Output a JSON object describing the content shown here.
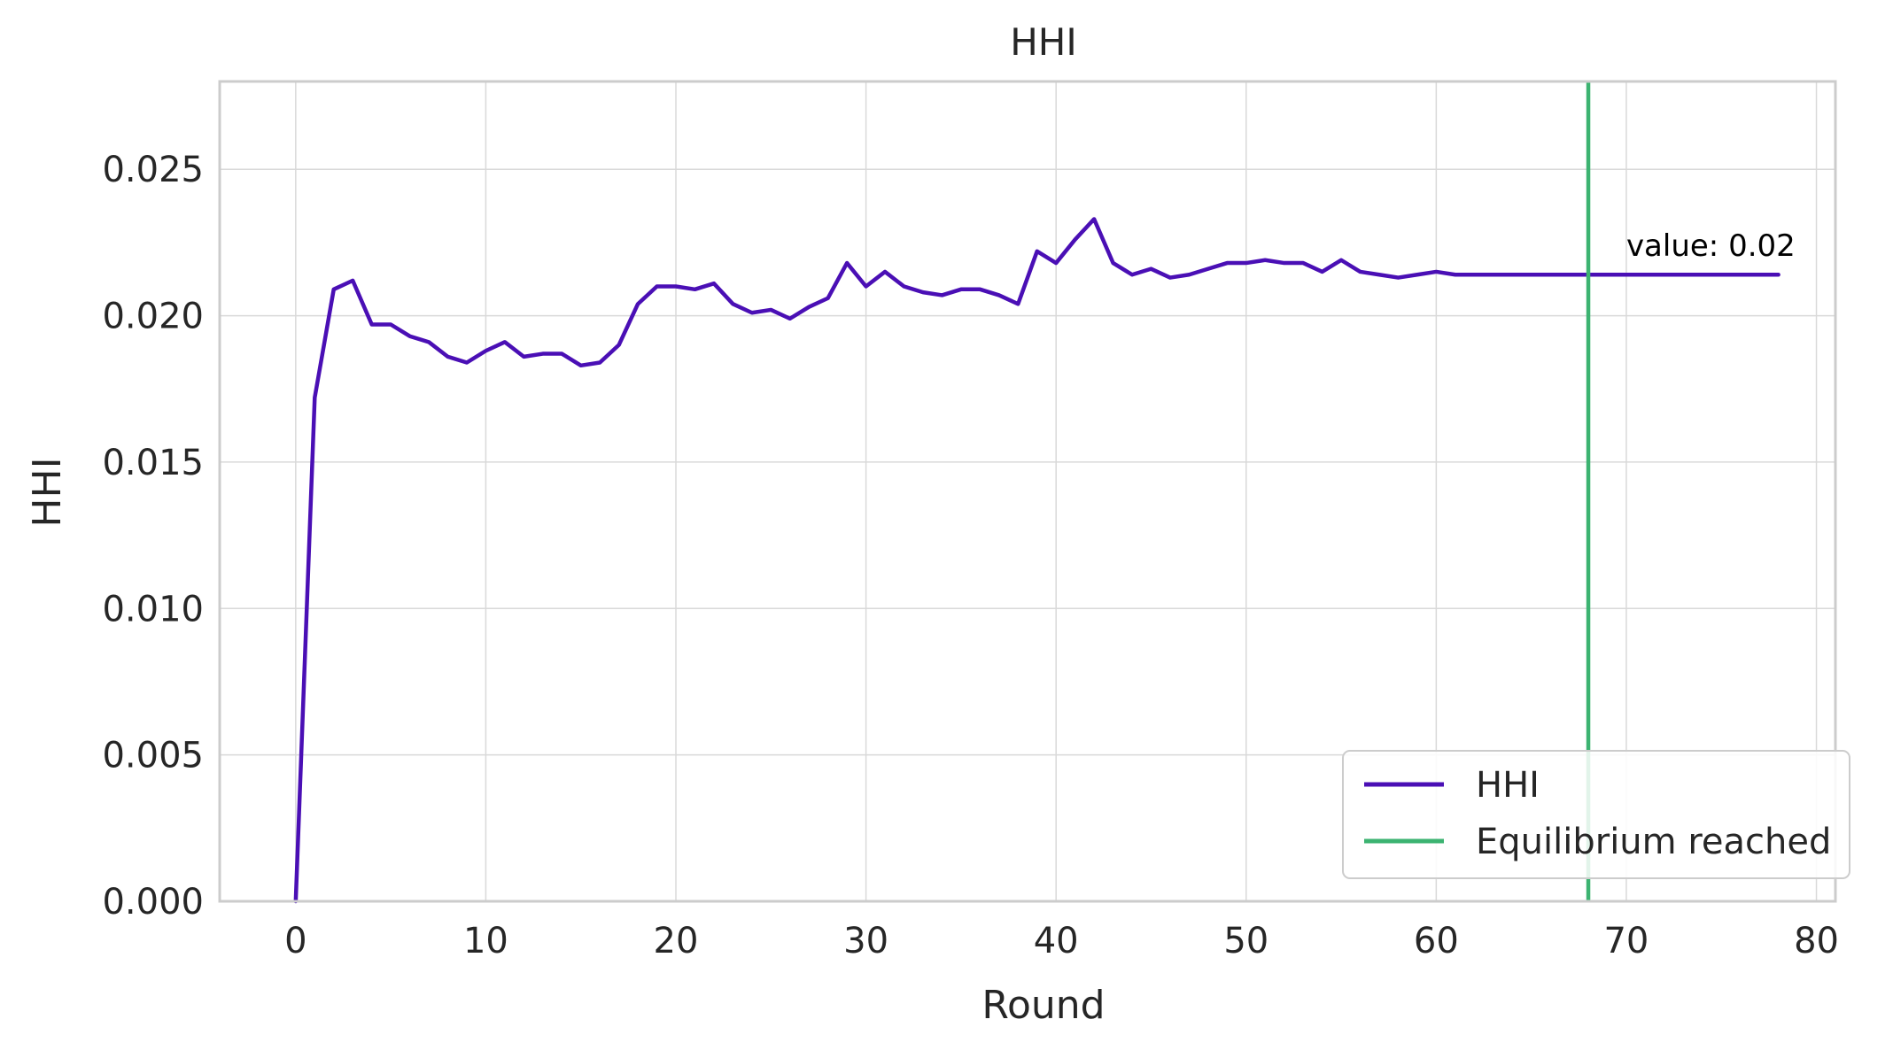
{
  "chart_data": {
    "type": "line",
    "title": "HHI",
    "xlabel": "Round",
    "ylabel": "HHI",
    "xlim": [
      -4,
      81
    ],
    "ylim": [
      0,
      0.028
    ],
    "xticks": [
      0,
      10,
      20,
      30,
      40,
      50,
      60,
      70,
      80
    ],
    "xtick_labels": [
      "0",
      "10",
      "20",
      "30",
      "40",
      "50",
      "60",
      "70",
      "80"
    ],
    "yticks": [
      0,
      0.005,
      0.01,
      0.015,
      0.02,
      0.025
    ],
    "ytick_labels": [
      "0.000",
      "0.005",
      "0.010",
      "0.015",
      "0.020",
      "0.025"
    ],
    "grid": true,
    "legend_position": "bottom-right",
    "series": [
      {
        "name": "HHI",
        "color": "#4a0fb5",
        "x": [
          0,
          1,
          2,
          3,
          4,
          5,
          6,
          7,
          8,
          9,
          10,
          11,
          12,
          13,
          14,
          15,
          16,
          17,
          18,
          19,
          20,
          21,
          22,
          23,
          24,
          25,
          26,
          27,
          28,
          29,
          30,
          31,
          32,
          33,
          34,
          35,
          36,
          37,
          38,
          39,
          40,
          41,
          42,
          43,
          44,
          45,
          46,
          47,
          48,
          49,
          50,
          51,
          52,
          53,
          54,
          55,
          56,
          57,
          58,
          59,
          60,
          61,
          62,
          63,
          64,
          65,
          66,
          67,
          68,
          69,
          70,
          71,
          72,
          73,
          74,
          75,
          76,
          77,
          78
        ],
        "values": [
          0.0,
          0.0172,
          0.0209,
          0.0212,
          0.0197,
          0.0197,
          0.0193,
          0.0191,
          0.0186,
          0.0184,
          0.0188,
          0.0191,
          0.0186,
          0.0187,
          0.0187,
          0.0183,
          0.0184,
          0.019,
          0.0204,
          0.021,
          0.021,
          0.0209,
          0.0211,
          0.0204,
          0.0201,
          0.0202,
          0.0199,
          0.0203,
          0.0206,
          0.0218,
          0.021,
          0.0215,
          0.021,
          0.0208,
          0.0207,
          0.0209,
          0.0209,
          0.0207,
          0.0204,
          0.0222,
          0.0218,
          0.0226,
          0.0233,
          0.0218,
          0.0214,
          0.0216,
          0.0213,
          0.0214,
          0.0216,
          0.0218,
          0.0218,
          0.0219,
          0.0218,
          0.0218,
          0.0215,
          0.0219,
          0.0215,
          0.0214,
          0.0213,
          0.0214,
          0.0215,
          0.0214,
          0.0214,
          0.0214,
          0.0214,
          0.0214,
          0.0214,
          0.0214,
          0.0214,
          0.0214,
          0.0214,
          0.0214,
          0.0214,
          0.0214,
          0.0214,
          0.0214,
          0.0214,
          0.0214,
          0.0214
        ]
      }
    ],
    "vline": {
      "name": "Equilibrium reached",
      "x": 68,
      "color": "#3cb371"
    },
    "annotation": {
      "text": "value: 0.02",
      "x": 70,
      "y": 0.0224
    },
    "legend": [
      {
        "label": "HHI",
        "color": "#4a0fb5"
      },
      {
        "label": "Equilibrium reached",
        "color": "#3cb371"
      }
    ]
  }
}
